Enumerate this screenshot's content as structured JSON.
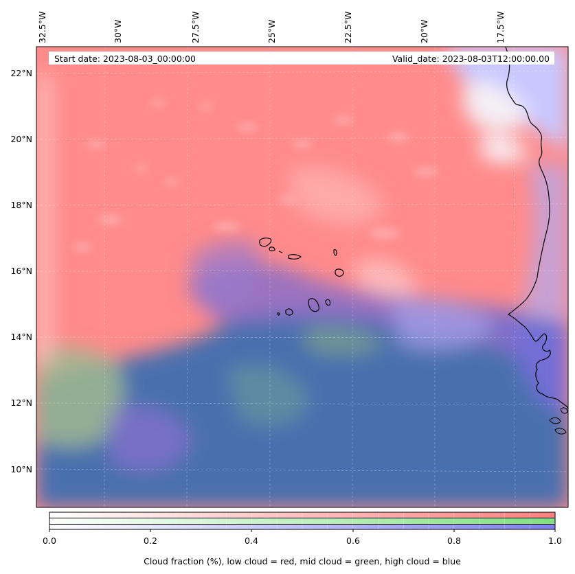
{
  "map": {
    "start_date_label": "Start date: 2023-08-03_00:00:00",
    "valid_date_label": "Valid_date: 2023-08-03T12:00:00.00",
    "longitude_ticks": [
      "32.5°W",
      "30°W",
      "27.5°W",
      "25°W",
      "22.5°W",
      "20°W",
      "17.5°W"
    ],
    "latitude_ticks": [
      "22°N",
      "20°N",
      "18°N",
      "16°N",
      "14°N",
      "12°N",
      "10°N"
    ],
    "colors": {
      "low_cloud": "#ff8080",
      "mid_cloud": "#80e080",
      "high_cloud": "#8080ff",
      "clear_sky": "#4a6fae",
      "coastline": "#000000"
    }
  },
  "colorbar": {
    "ticks": [
      "0.0",
      "0.2",
      "0.4",
      "0.6",
      "0.8",
      "1.0"
    ],
    "title": "Cloud fraction (%), low cloud = red, mid cloud = green, high cloud = blue",
    "bands": [
      {
        "name": "low cloud",
        "color": "#ff7f7f"
      },
      {
        "name": "mid cloud",
        "color": "#7fe07f"
      },
      {
        "name": "high cloud",
        "color": "#7f7fef"
      }
    ]
  }
}
